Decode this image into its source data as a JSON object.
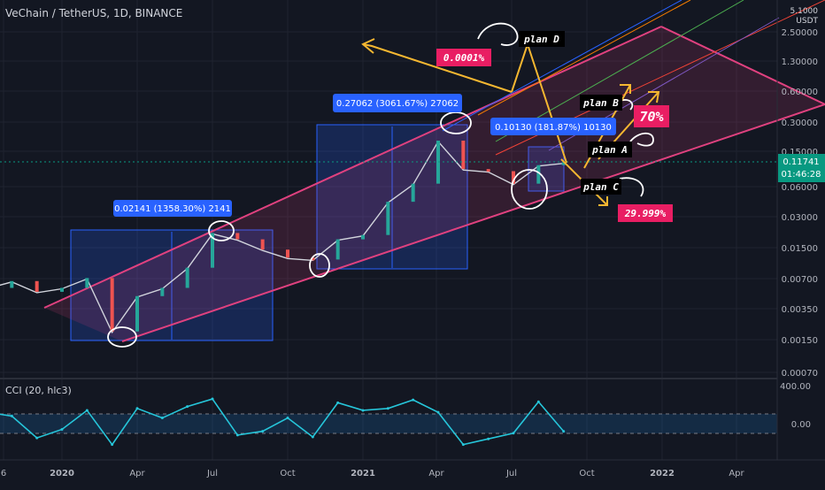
{
  "header": {
    "symbol_title": "VeChain / TetherUS, 1D, BINANCE",
    "axis_unit": "USDT",
    "axis_top_tick": "5.1000"
  },
  "price_axis": {
    "ticks": [
      "2.50000",
      "1.30000",
      "0.60000",
      "0.30000",
      "0.15000",
      "0.06000",
      "0.03000",
      "0.01500",
      "0.00700",
      "0.00350",
      "0.00150",
      "0.00070"
    ],
    "current_price": "0.11741",
    "countdown": "01:46:28"
  },
  "cci": {
    "title": "CCI (20, hlc3)",
    "ticks": [
      "400.00",
      "0.00"
    ]
  },
  "time_axis": {
    "labels": [
      "6",
      "2020",
      "Apr",
      "Jul",
      "Oct",
      "2021",
      "Apr",
      "Jul",
      "Oct",
      "2022",
      "Apr"
    ]
  },
  "measurements": [
    {
      "label": "0.02141 (1358.30%) 2141"
    },
    {
      "label": "0.27062 (3061.67%) 27062"
    },
    {
      "label": "0.10130 (181.87%) 10130"
    }
  ],
  "annotations": {
    "plan_a": "plan A",
    "plan_b": "plan B",
    "plan_c": "plan C",
    "plan_d": "plan D",
    "pct_70": "70%",
    "pct_30": "29.999%",
    "pct_d": "0.0001%"
  },
  "colors": {
    "background": "#131722",
    "candles": "#d1d4dc",
    "channel": "#e0417f",
    "measure_box": "#2962ff",
    "arrows": "#f5b731",
    "cci_line": "#26c6da",
    "badge_red": "#e91e63",
    "price_tag": "#089981"
  },
  "chart_data": [
    {
      "type": "line",
      "title": "VeChain / TetherUS, 1D, BINANCE",
      "scale": "log",
      "ylim": [
        0.0007,
        5.1
      ],
      "x": [
        "2019-09",
        "2019-10",
        "2019-11",
        "2019-12",
        "2020-01",
        "2020-02",
        "2020-03",
        "2020-04",
        "2020-05",
        "2020-06",
        "2020-07",
        "2020-08",
        "2020-09",
        "2020-10",
        "2020-11",
        "2020-12",
        "2021-01",
        "2021-02",
        "2021-03",
        "2021-04",
        "2021-05",
        "2021-06",
        "2021-07",
        "2021-08",
        "2021-09"
      ],
      "series": [
        {
          "values": [
            0.0035,
            0.0055,
            0.0065,
            0.005,
            0.0055,
            0.007,
            0.0019,
            0.0045,
            0.0055,
            0.009,
            0.021,
            0.018,
            0.014,
            0.0115,
            0.011,
            0.018,
            0.02,
            0.045,
            0.07,
            0.2,
            0.1,
            0.095,
            0.07,
            0.11,
            0.1174
          ]
        }
      ]
    },
    {
      "type": "line",
      "title": "CCI (20, hlc3)",
      "ylim": [
        -250,
        450
      ],
      "x": [
        "2019-09",
        "2019-10",
        "2019-11",
        "2019-12",
        "2020-01",
        "2020-02",
        "2020-03",
        "2020-04",
        "2020-05",
        "2020-06",
        "2020-07",
        "2020-08",
        "2020-09",
        "2020-10",
        "2020-11",
        "2020-12",
        "2021-01",
        "2021-02",
        "2021-03",
        "2021-04",
        "2021-05",
        "2021-06",
        "2021-07",
        "2021-08",
        "2021-09"
      ],
      "series": [
        {
          "values": [
            -50,
            120,
            80,
            -150,
            -60,
            140,
            -220,
            160,
            60,
            180,
            260,
            -120,
            -80,
            60,
            -140,
            220,
            140,
            160,
            250,
            120,
            -220,
            -160,
            -100,
            230,
            -80
          ]
        }
      ]
    }
  ]
}
